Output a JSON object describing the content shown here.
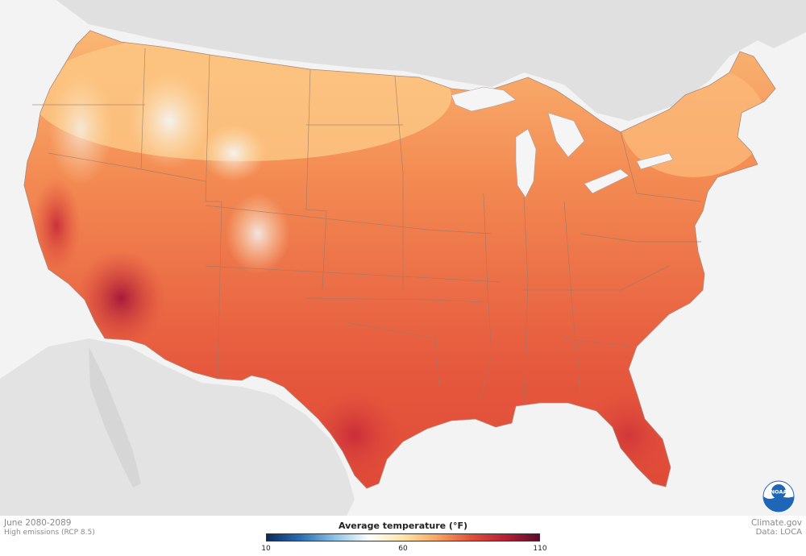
{
  "map": {
    "region": "contiguous-us",
    "variable": "average temperature",
    "palette": {
      "background": "#f3f3f3",
      "land_neighbors": "#dedede",
      "water": "#f5f5f5",
      "state_border": "#9a7a6a",
      "hot": "#c0283a",
      "warm": "#e04d3a",
      "mild": "#f7a566",
      "cool": "#ffe3b0",
      "cold": "#b9d6ec"
    }
  },
  "footer": {
    "period": "June 2080-2089",
    "scenario": "High emissions (RCP 8.5)",
    "source_name": "Climate.gov",
    "source_data": "Data: LOCA"
  },
  "legend": {
    "title": "Average temperature (°F)",
    "min": 10,
    "mid": 60,
    "max": 110,
    "ticks": [
      "10",
      "60",
      "110"
    ],
    "colors": [
      "#0a2a5e",
      "#2a6fb3",
      "#8cc3e6",
      "#ffffff",
      "#ffe6a8",
      "#f7a560",
      "#e0503a",
      "#b52036",
      "#5c0d2a"
    ]
  },
  "logo": {
    "text": "NOAA",
    "icon": "noaa-logo-icon",
    "color": "#1f66b8"
  }
}
